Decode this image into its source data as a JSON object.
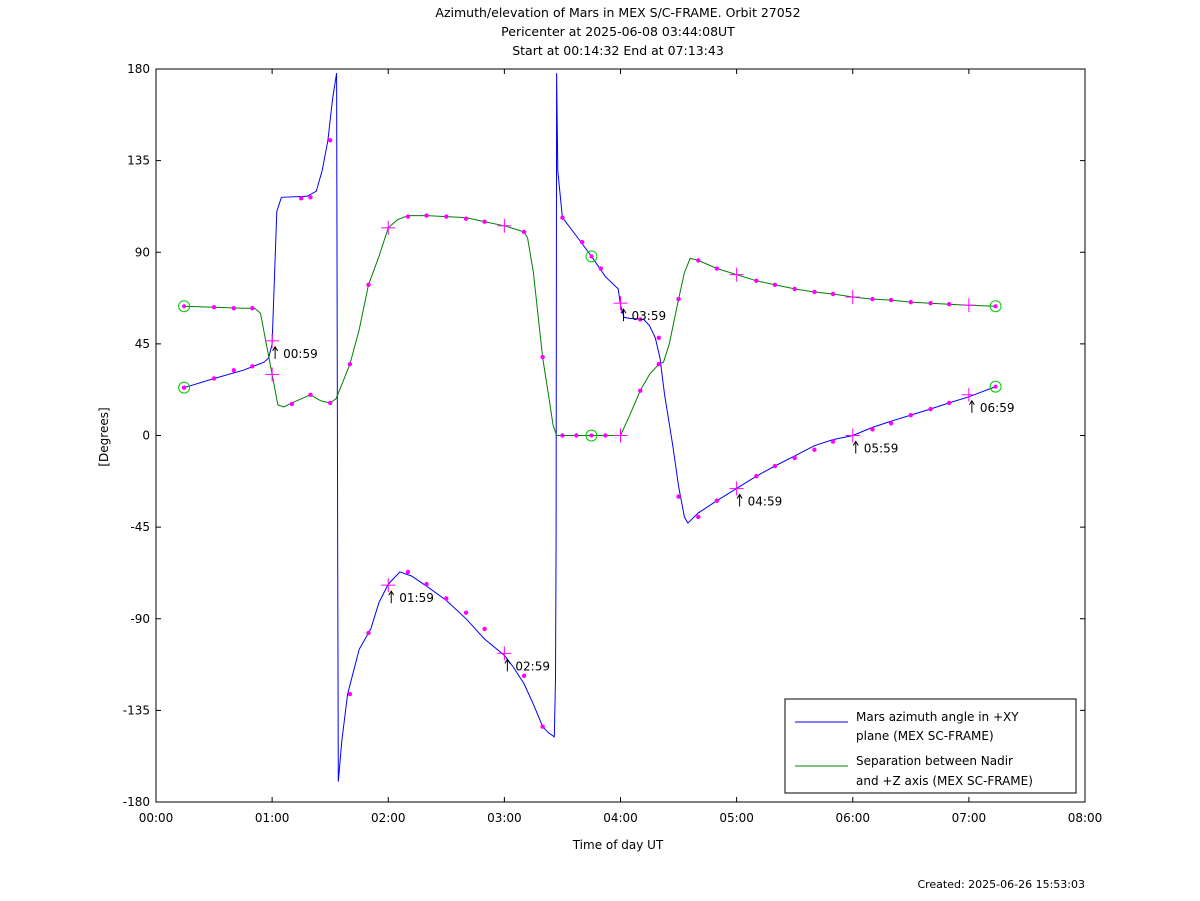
{
  "titles": [
    "Azimuth/elevation of Mars in MEX S/C-FRAME.  Orbit 27052",
    "Pericenter at 2025-06-08 03:44:08UT",
    "Start at 00:14:32 End at 07:13:43"
  ],
  "created": "Created: 2025-06-26 15:53:03",
  "colors": {
    "azimuth": "#0000ff",
    "separation": "#008000",
    "marker": "#ff00ff",
    "circle": "#00cc00"
  },
  "chart_data": {
    "type": "line",
    "xlabel": "Time of day UT",
    "ylabel": "[Degrees]",
    "xlim": [
      0,
      8
    ],
    "ylim": [
      -180,
      180
    ],
    "x_unit": "hours since 00:00 UT",
    "xticks": [
      0,
      1,
      2,
      3,
      4,
      5,
      6,
      7,
      8
    ],
    "xtick_labels": [
      "00:00",
      "01:00",
      "02:00",
      "03:00",
      "04:00",
      "05:00",
      "06:00",
      "07:00",
      "08:00"
    ],
    "yticks": [
      180,
      135,
      90,
      45,
      0,
      -45,
      -90,
      -135,
      -180
    ],
    "ytick_labels": [
      "180",
      "135",
      "90",
      "45",
      "0",
      "-45",
      "-90",
      "-135",
      "-180"
    ],
    "legend_position": "bottom-right",
    "series": [
      {
        "name": "Mars azimuth angle in +XY plane (MEX SC-FRAME)",
        "legend_lines": [
          "Mars azimuth angle in +XY",
          "plane (MEX SC-FRAME)"
        ],
        "color_key": "azimuth",
        "points": [
          [
            0.242,
            23.5
          ],
          [
            0.5,
            28
          ],
          [
            0.75,
            32
          ],
          [
            0.93,
            36
          ],
          [
            0.97,
            38
          ],
          [
            1.0,
            45
          ],
          [
            1.04,
            110
          ],
          [
            1.08,
            117
          ],
          [
            1.3,
            117.5
          ],
          [
            1.38,
            120
          ],
          [
            1.43,
            130
          ],
          [
            1.48,
            145
          ],
          [
            1.52,
            165
          ],
          [
            1.555,
            178
          ],
          [
            1.565,
            -60
          ],
          [
            1.57,
            -170
          ],
          [
            1.6,
            -150
          ],
          [
            1.65,
            -127
          ],
          [
            1.75,
            -105
          ],
          [
            1.85,
            -95
          ],
          [
            1.92,
            -82
          ],
          [
            2.0,
            -73
          ],
          [
            2.1,
            -67
          ],
          [
            2.2,
            -69
          ],
          [
            2.33,
            -74
          ],
          [
            2.5,
            -81
          ],
          [
            2.67,
            -90
          ],
          [
            2.83,
            -100
          ],
          [
            3.0,
            -108
          ],
          [
            3.08,
            -114
          ],
          [
            3.17,
            -122
          ],
          [
            3.25,
            -132
          ],
          [
            3.33,
            -143
          ],
          [
            3.38,
            -146
          ],
          [
            3.43,
            -148
          ],
          [
            3.44,
            -120
          ],
          [
            3.445,
            -50
          ],
          [
            3.45,
            178
          ],
          [
            3.46,
            130
          ],
          [
            3.5,
            107
          ],
          [
            3.62,
            98
          ],
          [
            3.75,
            88
          ],
          [
            3.87,
            78
          ],
          [
            3.98,
            72
          ],
          [
            4.0,
            64
          ],
          [
            4.03,
            58
          ],
          [
            4.08,
            57.5
          ],
          [
            4.2,
            57
          ],
          [
            4.25,
            54
          ],
          [
            4.3,
            48
          ],
          [
            4.34,
            38
          ],
          [
            4.38,
            20
          ],
          [
            4.45,
            -5
          ],
          [
            4.5,
            -25
          ],
          [
            4.55,
            -40
          ],
          [
            4.58,
            -43
          ],
          [
            4.67,
            -38
          ],
          [
            4.83,
            -32
          ],
          [
            5.0,
            -26
          ],
          [
            5.17,
            -20
          ],
          [
            5.33,
            -15
          ],
          [
            5.5,
            -10
          ],
          [
            5.67,
            -5
          ],
          [
            5.83,
            -2
          ],
          [
            6.0,
            0
          ],
          [
            6.17,
            4
          ],
          [
            6.33,
            7
          ],
          [
            6.5,
            10
          ],
          [
            6.67,
            13
          ],
          [
            6.83,
            16
          ],
          [
            7.0,
            19
          ],
          [
            7.23,
            24
          ]
        ],
        "markers": [
          [
            0.242,
            23.5
          ],
          [
            0.5,
            28
          ],
          [
            0.67,
            32
          ],
          [
            0.83,
            34
          ],
          [
            1.25,
            116.5
          ],
          [
            1.33,
            117
          ],
          [
            1.5,
            145
          ],
          [
            1.67,
            -127
          ],
          [
            1.83,
            -97
          ],
          [
            2.17,
            -67
          ],
          [
            2.33,
            -73
          ],
          [
            2.5,
            -80
          ],
          [
            2.67,
            -87
          ],
          [
            2.83,
            -95
          ],
          [
            3.17,
            -118
          ],
          [
            3.33,
            -143
          ],
          [
            3.5,
            107
          ],
          [
            3.67,
            95
          ],
          [
            3.83,
            82
          ],
          [
            4.17,
            57
          ],
          [
            4.33,
            48
          ],
          [
            4.5,
            -30
          ],
          [
            4.67,
            -40
          ],
          [
            4.83,
            -32
          ],
          [
            5.17,
            -20
          ],
          [
            5.33,
            -15
          ],
          [
            5.5,
            -11
          ],
          [
            5.67,
            -7
          ],
          [
            5.83,
            -3
          ],
          [
            6.17,
            3
          ],
          [
            6.33,
            6
          ],
          [
            6.5,
            10
          ],
          [
            6.67,
            13
          ],
          [
            6.83,
            16
          ]
        ],
        "hour_crosses": [
          [
            1.0,
            46.5
          ],
          [
            2.0,
            -73.5
          ],
          [
            3.0,
            -107
          ],
          [
            4.0,
            65
          ],
          [
            5.0,
            -26
          ],
          [
            6.0,
            0
          ],
          [
            7.0,
            20
          ]
        ],
        "hour_labels": [
          {
            "x": 1.0,
            "y": 46.5,
            "text": "00:59"
          },
          {
            "x": 2.0,
            "y": -73.5,
            "text": "01:59"
          },
          {
            "x": 3.0,
            "y": -107,
            "text": "02:59"
          },
          {
            "x": 4.0,
            "y": 65,
            "text": "03:59"
          },
          {
            "x": 5.0,
            "y": -26,
            "text": "04:59"
          },
          {
            "x": 6.0,
            "y": 0,
            "text": "05:59"
          },
          {
            "x": 7.0,
            "y": 20,
            "text": "06:59"
          }
        ]
      },
      {
        "name": "Separation between Nadir and +Z axis (MEX SC-FRAME)",
        "legend_lines": [
          "Separation between Nadir",
          "and +Z axis (MEX SC-FRAME)"
        ],
        "color_key": "separation",
        "points": [
          [
            0.242,
            63.5
          ],
          [
            0.5,
            63
          ],
          [
            0.75,
            62.5
          ],
          [
            0.85,
            62.5
          ],
          [
            0.9,
            60
          ],
          [
            0.95,
            45
          ],
          [
            1.0,
            30
          ],
          [
            1.05,
            15
          ],
          [
            1.1,
            14
          ],
          [
            1.17,
            16
          ],
          [
            1.33,
            20
          ],
          [
            1.42,
            17
          ],
          [
            1.5,
            16
          ],
          [
            1.55,
            18
          ],
          [
            1.6,
            25
          ],
          [
            1.67,
            35
          ],
          [
            1.75,
            52
          ],
          [
            1.83,
            74
          ],
          [
            1.92,
            88
          ],
          [
            2.0,
            102
          ],
          [
            2.08,
            106
          ],
          [
            2.17,
            108
          ],
          [
            2.33,
            108
          ],
          [
            2.5,
            107.5
          ],
          [
            2.67,
            107
          ],
          [
            2.83,
            105
          ],
          [
            3.0,
            103
          ],
          [
            3.17,
            100
          ],
          [
            3.2,
            97
          ],
          [
            3.25,
            80
          ],
          [
            3.33,
            38
          ],
          [
            3.38,
            20
          ],
          [
            3.42,
            5
          ],
          [
            3.45,
            0
          ],
          [
            3.5,
            0
          ],
          [
            3.75,
            0
          ],
          [
            4.0,
            0
          ],
          [
            4.08,
            10
          ],
          [
            4.17,
            22
          ],
          [
            4.25,
            30
          ],
          [
            4.33,
            35
          ],
          [
            4.37,
            36
          ],
          [
            4.42,
            45
          ],
          [
            4.5,
            67
          ],
          [
            4.55,
            80
          ],
          [
            4.6,
            87
          ],
          [
            4.67,
            86
          ],
          [
            4.83,
            82
          ],
          [
            5.0,
            79
          ],
          [
            5.17,
            76
          ],
          [
            5.33,
            74
          ],
          [
            5.5,
            72
          ],
          [
            5.67,
            70.5
          ],
          [
            5.83,
            69.5
          ],
          [
            6.0,
            68
          ],
          [
            6.17,
            67
          ],
          [
            6.33,
            66.5
          ],
          [
            6.5,
            65.5
          ],
          [
            6.67,
            65
          ],
          [
            6.83,
            64.5
          ],
          [
            7.0,
            64
          ],
          [
            7.23,
            63.5
          ]
        ],
        "markers": [
          [
            0.5,
            63
          ],
          [
            0.67,
            62.5
          ],
          [
            0.83,
            62.5
          ],
          [
            1.17,
            15.5
          ],
          [
            1.33,
            20
          ],
          [
            1.5,
            16
          ],
          [
            1.67,
            35
          ],
          [
            1.83,
            74
          ],
          [
            2.17,
            107.5
          ],
          [
            2.33,
            108
          ],
          [
            2.5,
            107.5
          ],
          [
            2.67,
            106.5
          ],
          [
            2.83,
            105
          ],
          [
            3.17,
            100
          ],
          [
            3.33,
            38.5
          ],
          [
            3.5,
            0
          ],
          [
            3.62,
            0
          ],
          [
            3.87,
            0
          ],
          [
            4.17,
            22
          ],
          [
            4.33,
            35
          ],
          [
            4.5,
            67
          ],
          [
            4.67,
            86
          ],
          [
            4.83,
            82
          ],
          [
            5.17,
            76
          ],
          [
            5.33,
            74
          ],
          [
            5.5,
            72
          ],
          [
            5.67,
            70.5
          ],
          [
            5.83,
            69.5
          ],
          [
            6.17,
            67
          ],
          [
            6.33,
            66.5
          ],
          [
            6.5,
            65.5
          ],
          [
            6.67,
            65
          ],
          [
            6.83,
            64.5
          ]
        ],
        "hour_crosses": [
          [
            1.0,
            30
          ],
          [
            2.0,
            102
          ],
          [
            3.0,
            103
          ],
          [
            4.0,
            0
          ],
          [
            5.0,
            79
          ],
          [
            6.0,
            68
          ],
          [
            7.0,
            64
          ]
        ]
      }
    ],
    "circle_markers": [
      [
        0.242,
        63.5
      ],
      [
        0.242,
        23.5
      ],
      [
        3.75,
        88
      ],
      [
        3.75,
        0
      ],
      [
        7.23,
        63.5
      ],
      [
        7.23,
        24
      ]
    ]
  }
}
